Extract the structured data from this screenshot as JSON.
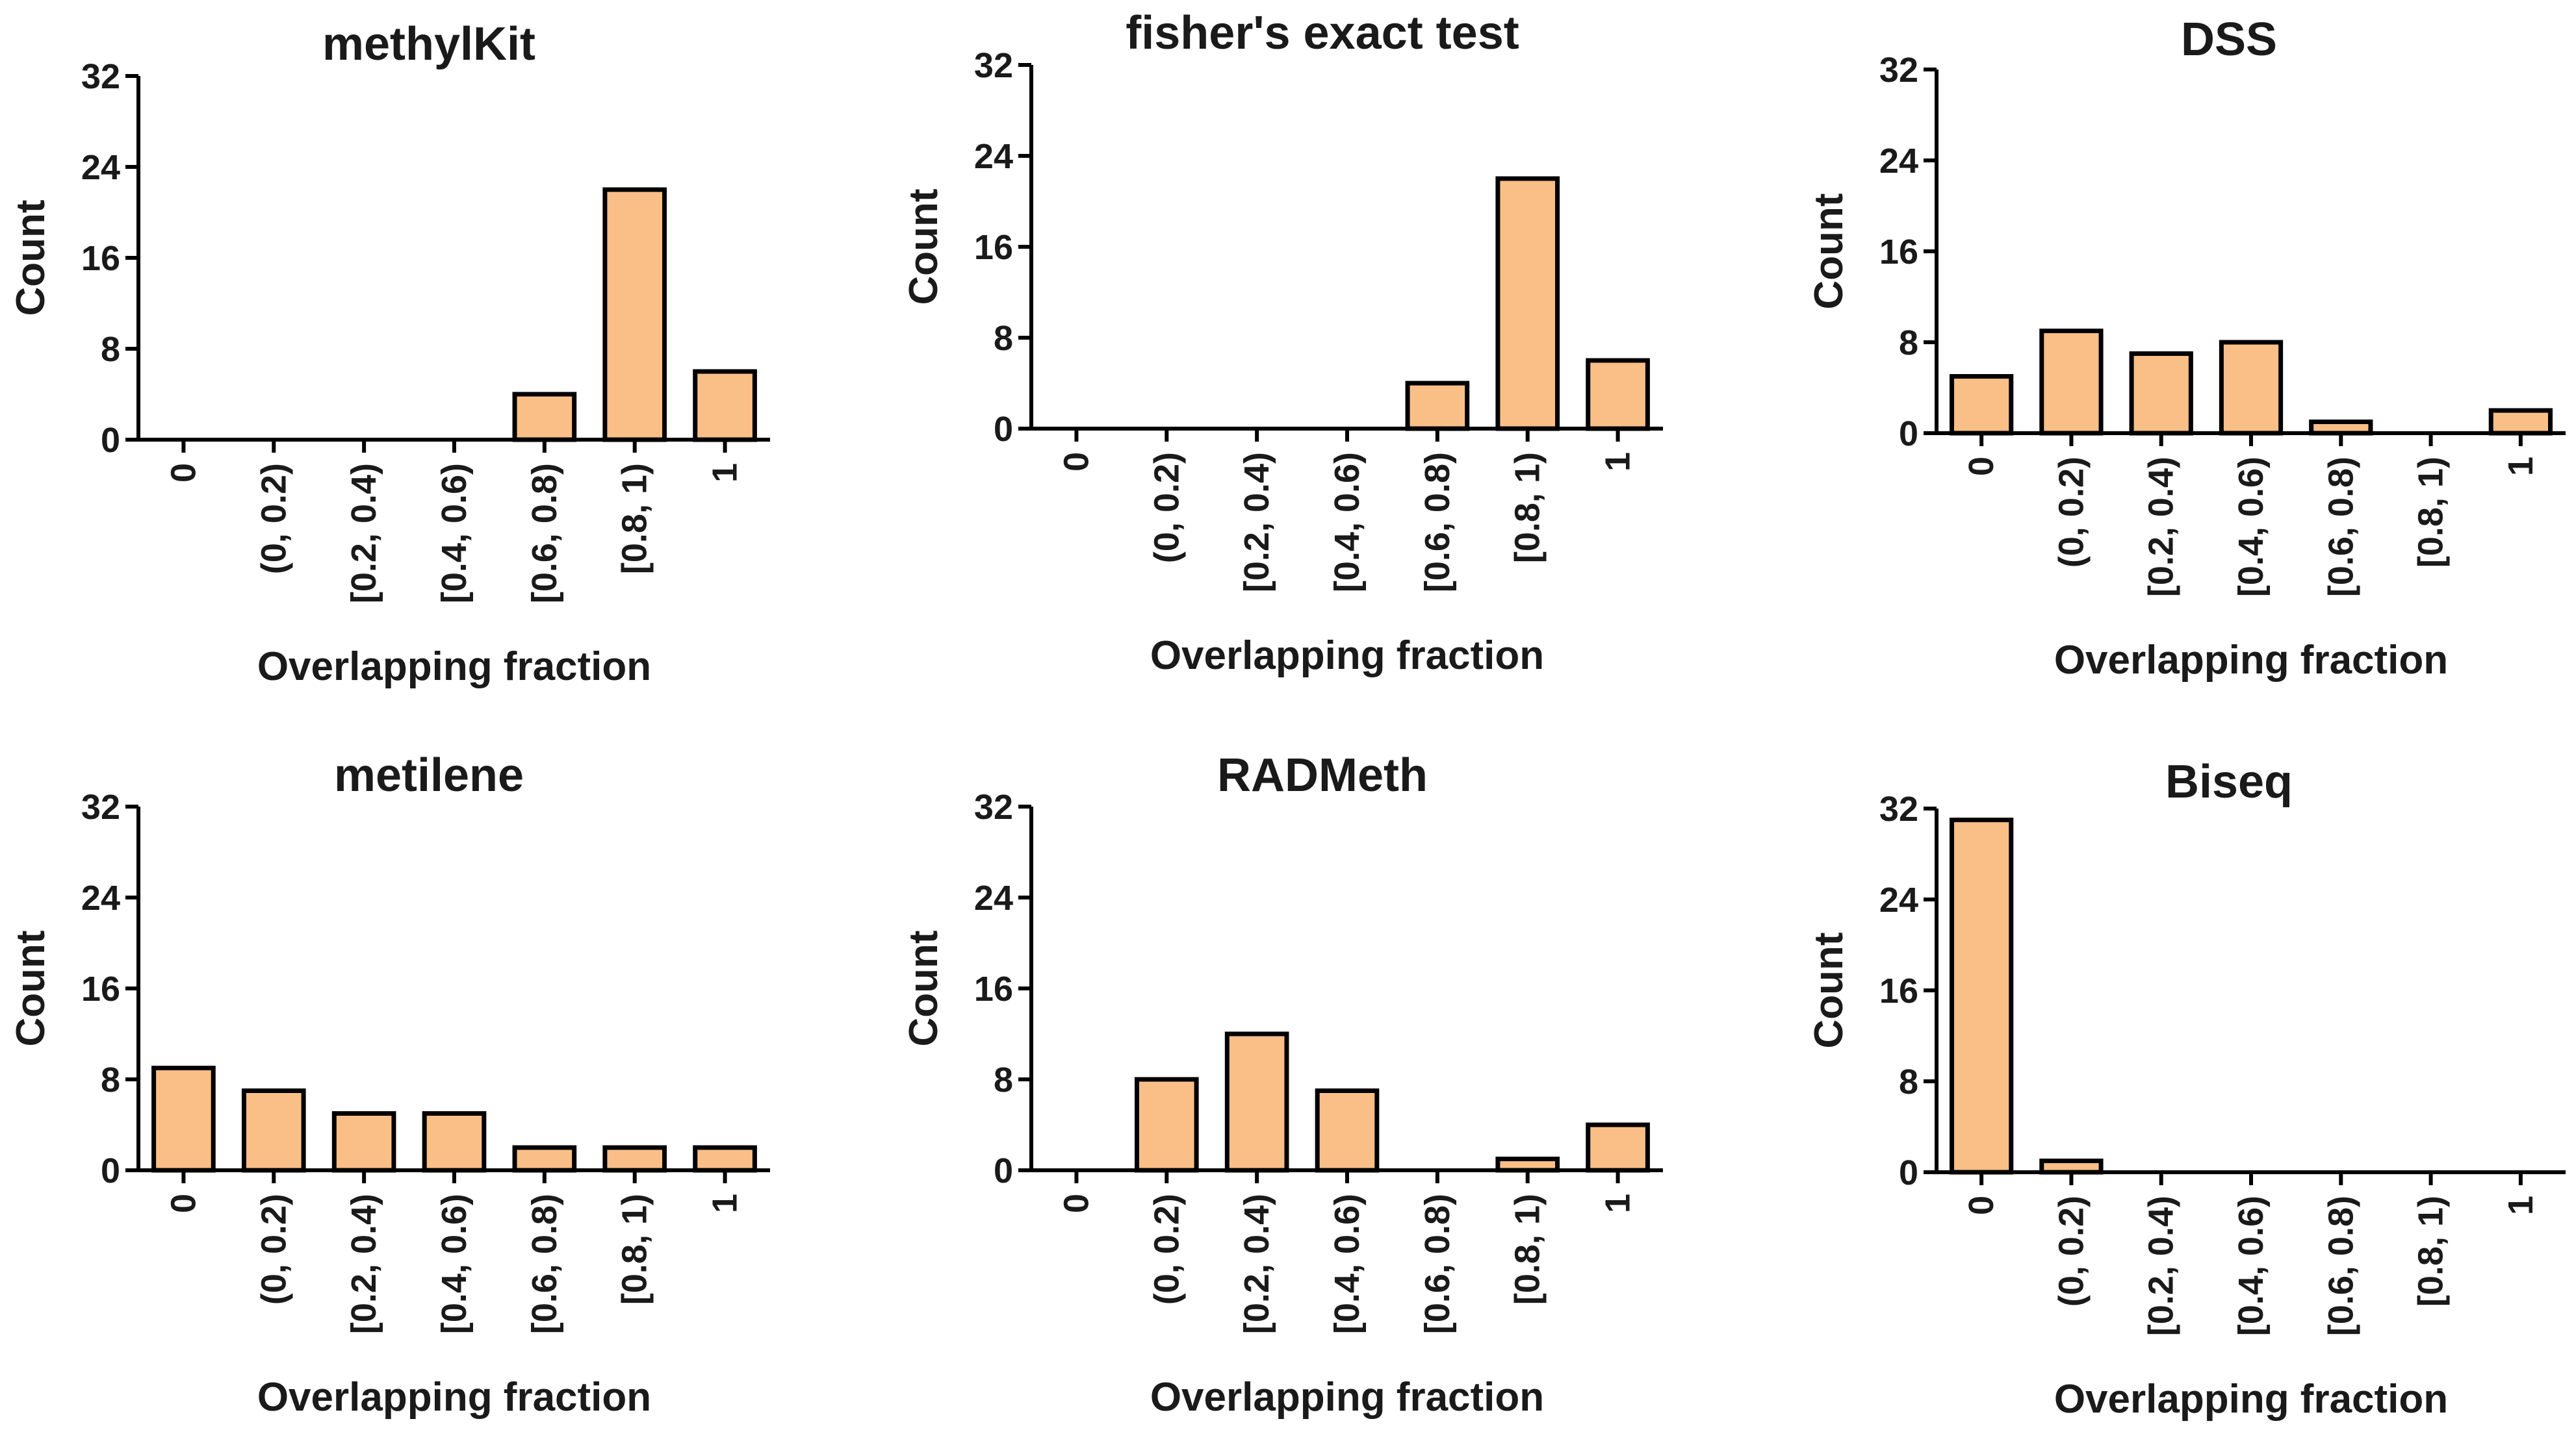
{
  "figure": {
    "bar_color": "#FABF87",
    "axis_color": "#000000"
  },
  "chart_data": [
    {
      "type": "bar",
      "title": "methylKit",
      "xlabel": "Overlapping fraction",
      "ylabel": "Count",
      "ylim": [
        0,
        32
      ],
      "yticks": [
        "0",
        "8",
        "16",
        "24",
        "32"
      ],
      "categories": [
        "0",
        "(0, 0.2)",
        "[0.2, 0.4)",
        "[0.4, 0.6)",
        "[0.6, 0.8)",
        "[0.8, 1)",
        "1"
      ],
      "values": [
        0,
        0,
        0,
        0,
        4,
        22,
        6
      ]
    },
    {
      "type": "bar",
      "title": "fisher's exact test",
      "xlabel": "Overlapping fraction",
      "ylabel": "Count",
      "ylim": [
        0,
        32
      ],
      "yticks": [
        "0",
        "8",
        "16",
        "24",
        "32"
      ],
      "categories": [
        "0",
        "(0, 0.2)",
        "[0.2, 0.4)",
        "[0.4, 0.6)",
        "[0.6, 0.8)",
        "[0.8, 1)",
        "1"
      ],
      "values": [
        0,
        0,
        0,
        0,
        4,
        22,
        6
      ]
    },
    {
      "type": "bar",
      "title": "DSS",
      "xlabel": "Overlapping fraction",
      "ylabel": "Count",
      "ylim": [
        0,
        32
      ],
      "yticks": [
        "0",
        "8",
        "16",
        "24",
        "32"
      ],
      "categories": [
        "0",
        "(0, 0.2)",
        "[0.2, 0.4)",
        "[0.4, 0.6)",
        "[0.6, 0.8)",
        "[0.8, 1)",
        "1"
      ],
      "values": [
        5,
        9,
        7,
        8,
        1,
        0,
        2
      ]
    },
    {
      "type": "bar",
      "title": "metilene",
      "xlabel": "Overlapping fraction",
      "ylabel": "Count",
      "ylim": [
        0,
        32
      ],
      "yticks": [
        "0",
        "8",
        "16",
        "24",
        "32"
      ],
      "categories": [
        "0",
        "(0, 0.2)",
        "[0.2, 0.4)",
        "[0.4, 0.6)",
        "[0.6, 0.8)",
        "[0.8, 1)",
        "1"
      ],
      "values": [
        9,
        7,
        5,
        5,
        2,
        2,
        2
      ]
    },
    {
      "type": "bar",
      "title": "RADMeth",
      "xlabel": "Overlapping fraction",
      "ylabel": "Count",
      "ylim": [
        0,
        32
      ],
      "yticks": [
        "0",
        "8",
        "16",
        "24",
        "32"
      ],
      "categories": [
        "0",
        "(0, 0.2)",
        "[0.2, 0.4)",
        "[0.4, 0.6)",
        "[0.6, 0.8)",
        "[0.8, 1)",
        "1"
      ],
      "values": [
        0,
        8,
        12,
        7,
        0,
        1,
        4
      ]
    },
    {
      "type": "bar",
      "title": "Biseq",
      "xlabel": "Overlapping fraction",
      "ylabel": "Count",
      "ylim": [
        0,
        32
      ],
      "yticks": [
        "0",
        "8",
        "16",
        "24",
        "32"
      ],
      "categories": [
        "0",
        "(0, 0.2)",
        "[0.2, 0.4)",
        "[0.4, 0.6)",
        "[0.6, 0.8)",
        "[0.8, 1)",
        "1"
      ],
      "values": [
        31,
        1,
        0,
        0,
        0,
        0,
        0
      ]
    }
  ]
}
